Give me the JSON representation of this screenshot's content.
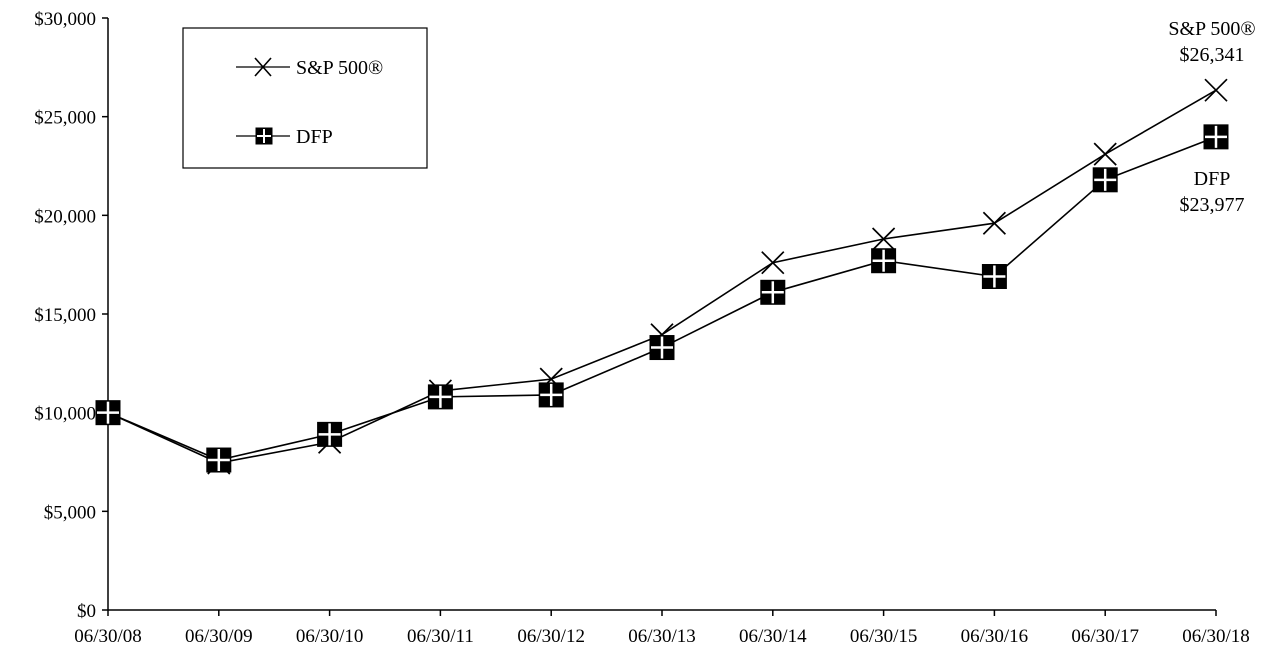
{
  "chart_data": {
    "type": "line",
    "categories": [
      "06/30/08",
      "06/30/09",
      "06/30/10",
      "06/30/11",
      "06/30/12",
      "06/30/13",
      "06/30/14",
      "06/30/15",
      "06/30/16",
      "06/30/17",
      "06/30/18"
    ],
    "y_ticks": [
      "$0",
      "$5,000",
      "$10,000",
      "$15,000",
      "$20,000",
      "$25,000",
      "$30,000"
    ],
    "ylim": [
      0,
      30000
    ],
    "title": "",
    "xlabel": "",
    "ylabel": "",
    "grid": false,
    "legend_position": "top-left",
    "series": [
      {
        "name": "S&P 500®",
        "marker": "x",
        "color": "#000000",
        "values": [
          10000,
          7450,
          8500,
          11100,
          11700,
          13950,
          17600,
          18800,
          19600,
          23100,
          26341
        ]
      },
      {
        "name": "DFP",
        "marker": "filled-square-with-cross",
        "color": "#000000",
        "values": [
          10000,
          7600,
          8900,
          10800,
          10900,
          13300,
          16100,
          17700,
          16900,
          21800,
          23977
        ]
      }
    ],
    "annotations": {
      "sp_name": "S&P 500®",
      "sp_value": "$26,341",
      "dfp_name": "DFP",
      "dfp_value": "$23,977"
    }
  }
}
